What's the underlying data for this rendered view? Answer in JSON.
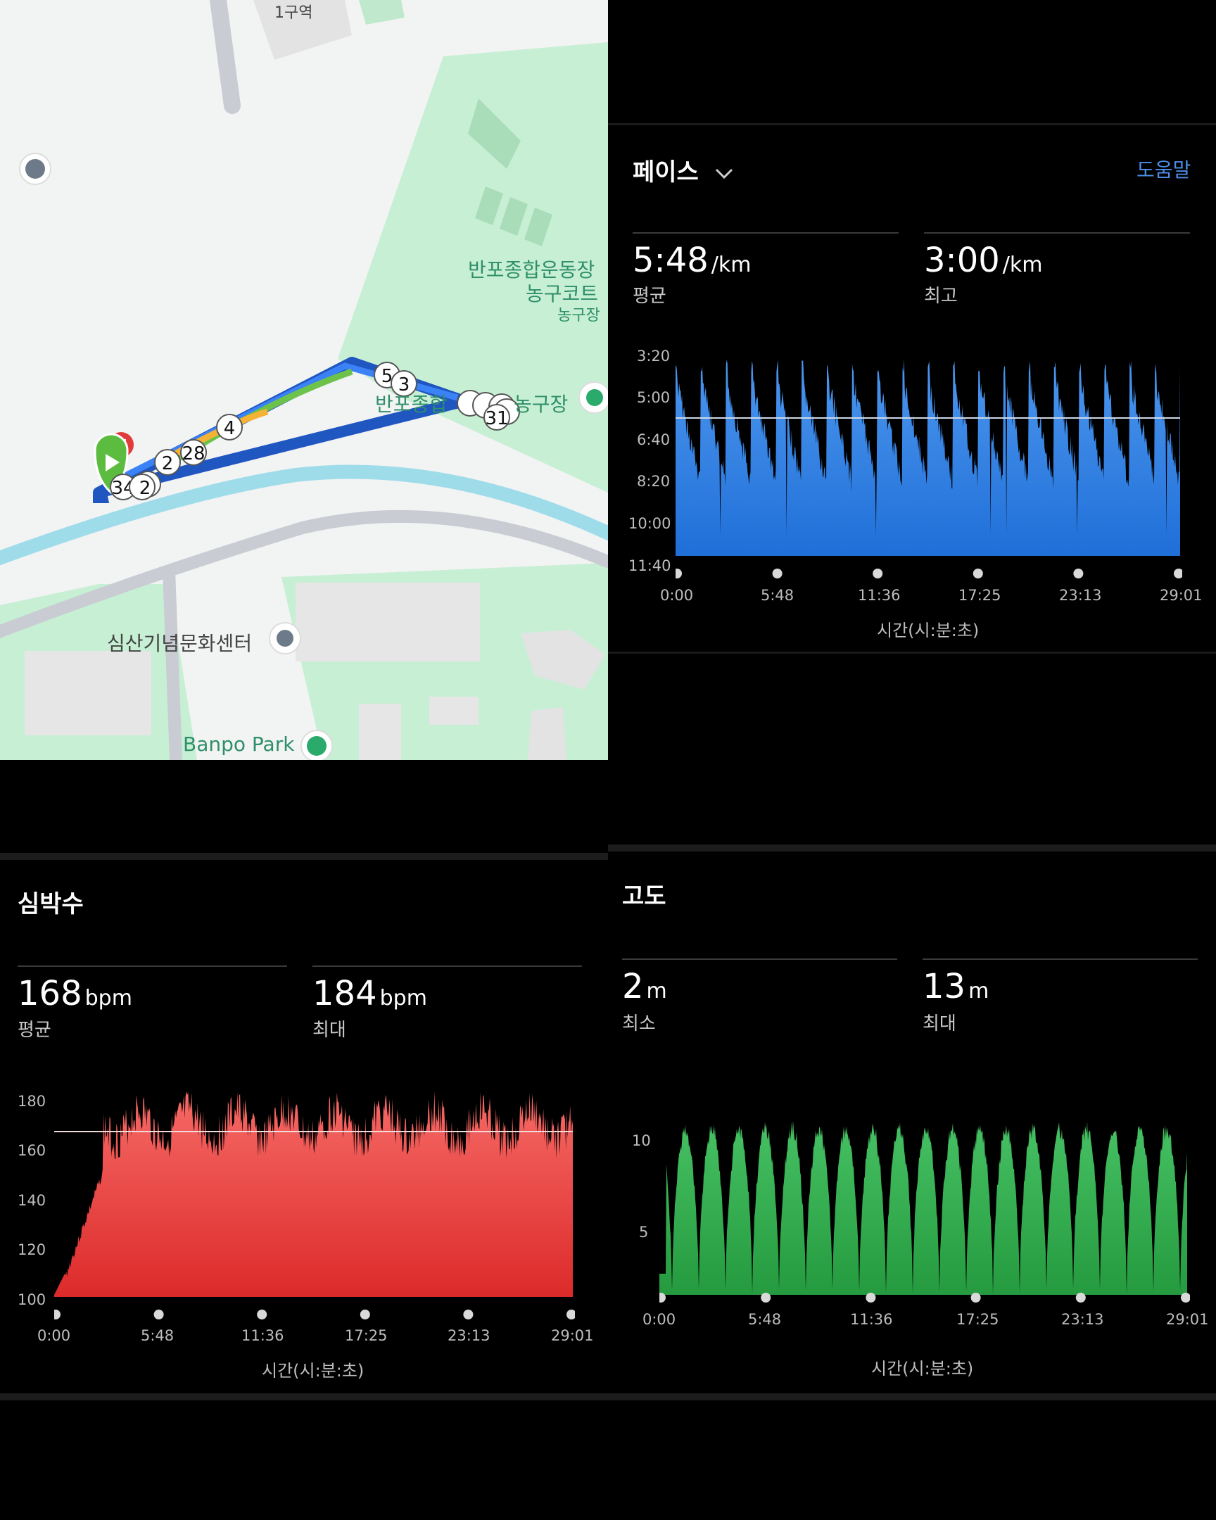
{
  "map": {
    "labels": {
      "stadium": "반포종합운동장",
      "court": "농구코트",
      "basketball": "농구장",
      "stadium_short": "반포종합",
      "basketball2": "농구장",
      "culture_center": "심산기념문화센터",
      "park": "Banpo Park",
      "top_building": "1구역"
    },
    "markers": [
      "5",
      "3",
      "4",
      "28",
      "2",
      "31",
      "34",
      "2",
      "1",
      "3"
    ]
  },
  "pace": {
    "title": "페이스",
    "help": "도움말",
    "avg_value": "5:48",
    "avg_unit": "/km",
    "avg_label": "평균",
    "best_value": "3:00",
    "best_unit": "/km",
    "best_label": "최고",
    "y_ticks": [
      "3:20",
      "5:00",
      "6:40",
      "8:20",
      "10:00",
      "11:40"
    ],
    "x_ticks": [
      "0:00",
      "5:48",
      "11:36",
      "17:25",
      "23:13",
      "29:01"
    ],
    "x_title": "시간(시:분:초)",
    "color": "#2e7de0"
  },
  "heart": {
    "title": "심박수",
    "avg_value": "168",
    "avg_unit": "bpm",
    "avg_label": "평균",
    "max_value": "184",
    "max_unit": "bpm",
    "max_label": "최대",
    "y_ticks": [
      "180",
      "160",
      "140",
      "120",
      "100"
    ],
    "x_ticks": [
      "0:00",
      "5:48",
      "11:36",
      "17:25",
      "23:13",
      "29:01"
    ],
    "x_title": "시간(시:분:초)",
    "color": "#e8403e"
  },
  "elevation": {
    "title": "고도",
    "min_value": "2",
    "min_unit": "m",
    "min_label": "최소",
    "max_value": "13",
    "max_unit": "m",
    "max_label": "최대",
    "y_ticks": [
      "10",
      "5"
    ],
    "x_ticks": [
      "0:00",
      "5:48",
      "11:36",
      "17:25",
      "23:13",
      "29:01"
    ],
    "x_title": "시간(시:분:초)",
    "color": "#2fa84a"
  }
}
